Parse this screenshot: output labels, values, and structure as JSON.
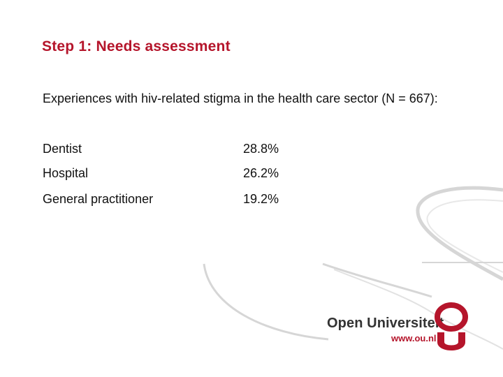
{
  "slide": {
    "title": "Step 1: Needs assessment",
    "intro": "Experiences with hiv-related stigma in the health care sector (N = 667):",
    "rows": [
      {
        "label": "Dentist",
        "value": "28.8%"
      },
      {
        "label": "Hospital",
        "value": "26.2%"
      },
      {
        "label": "General practitioner",
        "value": "19.2%"
      }
    ]
  },
  "logo": {
    "name": "Open Universiteit",
    "url": "www.ou.nl"
  },
  "colors": {
    "accent": "#b5152b",
    "text": "#111111",
    "swoosh": "#d6d6d6"
  }
}
